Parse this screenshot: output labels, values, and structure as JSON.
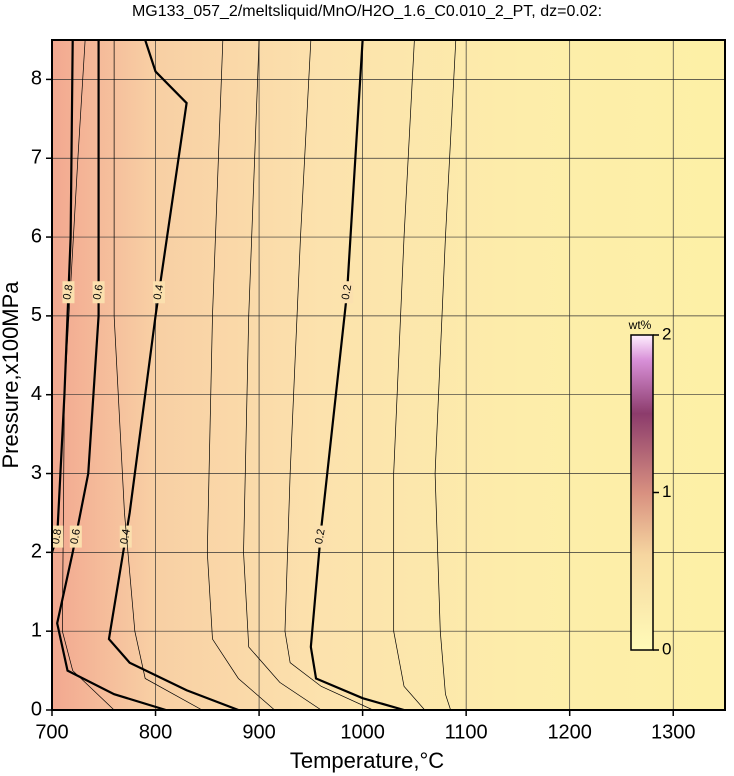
{
  "chart_data": {
    "type": "contour",
    "title": "MG133_057_2/meltsliquid/MnO/H2O_1.6_C0.010_2_PT, dz=0.02:",
    "x_label": "Temperature,°C",
    "y_label": "Pressure,x100MPa",
    "xlim": [
      700,
      1350
    ],
    "ylim": [
      0,
      8.5
    ],
    "xticks": [
      700,
      800,
      900,
      1000,
      1100,
      1200,
      1300
    ],
    "yticks": [
      0,
      1,
      2,
      3,
      4,
      5,
      6,
      7,
      8
    ],
    "grid": true,
    "colorbar": {
      "label": "wt%",
      "lim": [
        0,
        2
      ],
      "ticks": [
        0,
        1,
        2
      ]
    },
    "contours": [
      {
        "level": 0.1,
        "style": "minor",
        "x": [
          1085,
          1080,
          1075,
          1070,
          1080,
          1090
        ],
        "y": [
          0,
          0.2,
          1.0,
          3,
          6,
          8.5
        ]
      },
      {
        "level": 0.15,
        "style": "minor",
        "x": [
          1060,
          1040,
          1030,
          1030,
          1040,
          1050
        ],
        "y": [
          0,
          0.3,
          1,
          3,
          6,
          8.5
        ]
      },
      {
        "level": 0.2,
        "style": "major",
        "x": [
          1040,
          1000,
          955,
          950,
          960,
          985,
          1000
        ],
        "y": [
          0,
          0.15,
          0.4,
          0.8,
          2.3,
          5.3,
          8.5
        ]
      },
      {
        "level": 0.25,
        "style": "minor",
        "x": [
          1010,
          960,
          930,
          925,
          930,
          940,
          950
        ],
        "y": [
          0,
          0.3,
          0.6,
          1,
          3,
          6,
          8.5
        ]
      },
      {
        "level": 0.3,
        "style": "minor",
        "x": [
          960,
          920,
          890,
          885,
          890,
          900
        ],
        "y": [
          0,
          0.35,
          0.8,
          2,
          5,
          8.5
        ]
      },
      {
        "level": 0.35,
        "style": "minor",
        "x": [
          915,
          880,
          855,
          850,
          855,
          865
        ],
        "y": [
          0,
          0.4,
          0.9,
          2,
          5,
          8.5
        ]
      },
      {
        "level": 0.4,
        "style": "major",
        "x": [
          880,
          830,
          775,
          755,
          760,
          775,
          790,
          800,
          830,
          800,
          790
        ],
        "y": [
          0,
          0.25,
          0.6,
          0.9,
          1.3,
          2.5,
          4,
          5.0,
          7.7,
          8.1,
          8.5
        ]
      },
      {
        "level": 0.5,
        "style": "minor",
        "x": [
          845,
          790,
          780,
          770,
          760,
          760
        ],
        "y": [
          0,
          0.4,
          1.0,
          2.5,
          5,
          8.5
        ]
      },
      {
        "level": 0.6,
        "style": "major",
        "x": [
          810,
          760,
          715,
          705,
          710,
          720,
          735,
          745,
          745,
          745
        ],
        "y": [
          0,
          0.2,
          0.5,
          1.1,
          1.4,
          2.0,
          3,
          5,
          6,
          8.5
        ]
      },
      {
        "level": 0.7,
        "style": "minor",
        "x": [
          760,
          720,
          710,
          712,
          725,
          732
        ],
        "y": [
          0,
          0.5,
          1.0,
          4,
          7,
          8.5
        ]
      },
      {
        "level": 0.8,
        "style": "major",
        "x": [
          700,
          705,
          712,
          718,
          720
        ],
        "y": [
          2.0,
          2.2,
          4,
          6,
          8.5
        ]
      }
    ]
  }
}
